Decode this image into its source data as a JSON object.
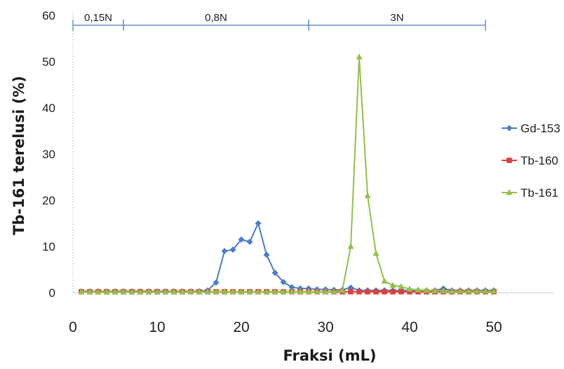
{
  "chart_data": {
    "type": "line",
    "xlabel": "Fraksi (mL)",
    "ylabel": "Tb-161  terelusi (%)",
    "xlim": [
      0,
      50
    ],
    "ylim": [
      0,
      60
    ],
    "x_ticks": [
      "0",
      "10",
      "20",
      "30",
      "40",
      "50"
    ],
    "y_ticks": [
      "0",
      "10",
      "20",
      "30",
      "40",
      "50",
      "60"
    ],
    "grid": false,
    "legend_position": "right",
    "elution_bands": [
      {
        "label": "0,15N",
        "x_start": 0,
        "x_end": 6
      },
      {
        "label": "0,8N",
        "x_start": 6,
        "x_end": 28
      },
      {
        "label": "3N",
        "x_start": 28,
        "x_end": 49
      }
    ],
    "x": [
      1,
      2,
      3,
      4,
      5,
      6,
      7,
      8,
      9,
      10,
      11,
      12,
      13,
      14,
      15,
      16,
      17,
      18,
      19,
      20,
      21,
      22,
      23,
      24,
      25,
      26,
      27,
      28,
      29,
      30,
      31,
      32,
      33,
      34,
      35,
      36,
      37,
      38,
      39,
      40,
      41,
      42,
      43,
      44,
      45,
      46,
      47,
      48,
      49,
      50
    ],
    "series": [
      {
        "name": "Gd-153",
        "color": "#4a7cc7",
        "marker": "diamond",
        "values": [
          0.3,
          0.3,
          0.3,
          0.3,
          0.3,
          0.3,
          0.3,
          0.3,
          0.3,
          0.3,
          0.3,
          0.3,
          0.3,
          0.3,
          0.3,
          0.5,
          2.2,
          9,
          9.3,
          11.5,
          11,
          15,
          8.2,
          4.3,
          2.3,
          1.2,
          0.9,
          0.9,
          0.7,
          0.7,
          0.6,
          0.6,
          1.1,
          0.5,
          0.5,
          0.5,
          0.5,
          0.5,
          0.5,
          0.5,
          0.5,
          0.5,
          0.5,
          0.9,
          0.5,
          0.5,
          0.5,
          0.5,
          0.5,
          0.5
        ]
      },
      {
        "name": "Tb-160",
        "color": "#d9423c",
        "marker": "square",
        "values": [
          0.2,
          0.2,
          0.2,
          0.2,
          0.2,
          0.2,
          0.2,
          0.2,
          0.2,
          0.2,
          0.2,
          0.2,
          0.2,
          0.2,
          0.2,
          0.2,
          0.2,
          0.2,
          0.2,
          0.2,
          0.2,
          0.2,
          0.2,
          0.2,
          0.2,
          0.2,
          0.2,
          0.2,
          0.2,
          0.2,
          0.2,
          0.2,
          0.2,
          0.2,
          0.2,
          0.2,
          0.2,
          0.2,
          0.2,
          0.2,
          0.2,
          0.2,
          0.2,
          0.2,
          0.2,
          0.2,
          0.2,
          0.2,
          0.2,
          0.2
        ]
      },
      {
        "name": "Tb-161",
        "color": "#93c04a",
        "marker": "triangle",
        "values": [
          0.2,
          0.2,
          0.2,
          0.2,
          0.2,
          0.2,
          0.2,
          0.2,
          0.2,
          0.2,
          0.2,
          0.2,
          0.2,
          0.2,
          0.2,
          0.2,
          0.2,
          0.2,
          0.2,
          0.2,
          0.2,
          0.2,
          0.2,
          0.2,
          0.2,
          0.2,
          0.2,
          0.2,
          0.2,
          0.2,
          0.2,
          0.5,
          10,
          51,
          21,
          8.5,
          2.5,
          1.6,
          1.3,
          0.8,
          0.6,
          0.5,
          0.4,
          0.4,
          0.3,
          0.3,
          0.3,
          0.3,
          0.3,
          0.3
        ]
      }
    ]
  }
}
